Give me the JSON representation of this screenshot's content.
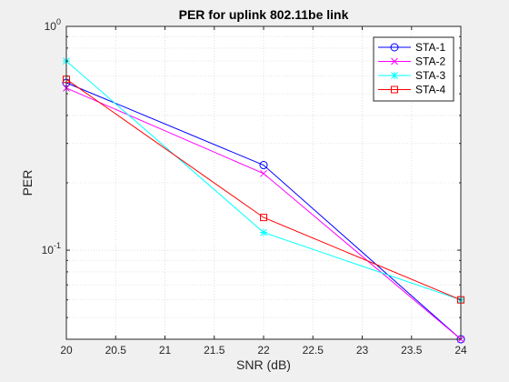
{
  "chart_data": {
    "type": "line",
    "title": "PER for uplink 802.11be link",
    "xlabel": "SNR (dB)",
    "ylabel": "PER",
    "xlim": [
      20,
      24
    ],
    "ylim": [
      0.04,
      1
    ],
    "yscale": "log",
    "grid": "on (major and minor)",
    "legend_position": "top-right",
    "x": [
      20,
      22,
      24
    ],
    "x_tick_labels": [
      "20",
      "20.5",
      "21",
      "21.5",
      "22",
      "22.5",
      "23",
      "23.5",
      "24"
    ],
    "y_tick_labels": [
      {
        "base": "10",
        "exp": "0"
      },
      {
        "base": "10",
        "exp": "-1"
      }
    ],
    "series": [
      {
        "name": "STA-1",
        "values": [
          0.56,
          0.24,
          0.04
        ],
        "color": "#0000ff",
        "marker": "circle"
      },
      {
        "name": "STA-2",
        "values": [
          0.53,
          0.22,
          0.04
        ],
        "color": "#ff00ff",
        "marker": "x"
      },
      {
        "name": "STA-3",
        "values": [
          0.7,
          0.12,
          0.06
        ],
        "color": "#00ffff",
        "marker": "star"
      },
      {
        "name": "STA-4",
        "values": [
          0.58,
          0.14,
          0.06
        ],
        "color": "#ff0000",
        "marker": "square"
      }
    ]
  }
}
